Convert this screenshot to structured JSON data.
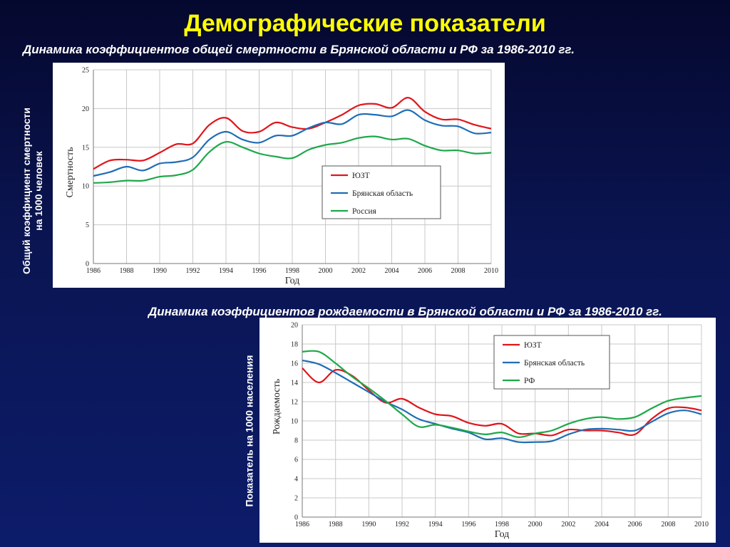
{
  "slide": {
    "title": "Демографические показатели",
    "subtitle_mortality": "Динамика коэффициентов общей смертности в Брянской области и РФ за 1986-2010 гг.",
    "subtitle_births": "Динамика коэффициентов рождаемости в Брянской области и РФ за 1986-2010 гг.",
    "side_label_mortality_line1": "Общий коэффициент смертности",
    "side_label_mortality_line2": "на 1000  человек",
    "side_label_births": "Показатель на 1000 населения",
    "text_color": "#ffffff",
    "title_color": "#ffff00"
  },
  "chart_data": [
    {
      "type": "line",
      "xlabel": "Год",
      "ylabel": "Смертность",
      "xlim": [
        1986,
        2010
      ],
      "ylim": [
        0,
        25
      ],
      "x_ticks": [
        1986,
        1988,
        1990,
        1992,
        1994,
        1996,
        1998,
        2000,
        2002,
        2004,
        2006,
        2008,
        2010
      ],
      "y_ticks": [
        0,
        5,
        10,
        15,
        20,
        25
      ],
      "grid": true,
      "legend_position": "right-middle",
      "x": [
        1986,
        1987,
        1988,
        1989,
        1990,
        1991,
        1992,
        1993,
        1994,
        1995,
        1996,
        1997,
        1998,
        1999,
        2000,
        2001,
        2002,
        2003,
        2004,
        2005,
        2006,
        2007,
        2008,
        2009,
        2010
      ],
      "series": [
        {
          "name": "ЮЗТ",
          "color": "#e0151b",
          "values": [
            12.2,
            13.3,
            13.4,
            13.3,
            14.3,
            15.4,
            15.5,
            17.9,
            18.8,
            17.1,
            17.0,
            18.2,
            17.6,
            17.4,
            18.2,
            19.2,
            20.4,
            20.6,
            20.1,
            21.4,
            19.6,
            18.6,
            18.6,
            17.9,
            17.4
          ]
        },
        {
          "name": "Брянская область",
          "color": "#1f6db5",
          "values": [
            11.3,
            11.8,
            12.5,
            12.0,
            12.9,
            13.1,
            13.7,
            16.0,
            17.0,
            16.0,
            15.6,
            16.5,
            16.5,
            17.5,
            18.2,
            18.0,
            19.2,
            19.2,
            19.0,
            19.8,
            18.5,
            17.8,
            17.7,
            16.8,
            16.9
          ]
        },
        {
          "name": "Россия",
          "color": "#1ea84a",
          "values": [
            10.4,
            10.5,
            10.7,
            10.7,
            11.2,
            11.4,
            12.1,
            14.4,
            15.7,
            15.0,
            14.2,
            13.8,
            13.6,
            14.7,
            15.3,
            15.6,
            16.2,
            16.4,
            16.0,
            16.1,
            15.2,
            14.6,
            14.6,
            14.2,
            14.3
          ]
        }
      ]
    },
    {
      "type": "line",
      "xlabel": "Год",
      "ylabel": "Рождаемость",
      "xlim": [
        1986,
        2010
      ],
      "ylim": [
        0,
        20
      ],
      "x_ticks": [
        1986,
        1988,
        1990,
        1992,
        1994,
        1996,
        1998,
        2000,
        2002,
        2004,
        2006,
        2008,
        2010
      ],
      "y_ticks": [
        0,
        2,
        4,
        6,
        8,
        10,
        12,
        14,
        16,
        18,
        20
      ],
      "grid": true,
      "legend_position": "top-right",
      "x": [
        1986,
        1987,
        1988,
        1989,
        1990,
        1991,
        1992,
        1993,
        1994,
        1995,
        1996,
        1997,
        1998,
        1999,
        2000,
        2001,
        2002,
        2003,
        2004,
        2005,
        2006,
        2007,
        2008,
        2009,
        2010
      ],
      "series": [
        {
          "name": "ЮЗТ",
          "color": "#e0151b",
          "values": [
            15.5,
            14.0,
            15.3,
            14.7,
            13.2,
            11.9,
            12.3,
            11.4,
            10.7,
            10.5,
            9.8,
            9.5,
            9.7,
            8.7,
            8.7,
            8.5,
            9.1,
            9.0,
            9.0,
            8.8,
            8.6,
            10.2,
            11.3,
            11.4,
            11.1
          ]
        },
        {
          "name": "Брянская область",
          "color": "#1f6db5",
          "values": [
            16.3,
            15.9,
            15.0,
            14.0,
            13.0,
            12.0,
            11.2,
            10.2,
            9.7,
            9.2,
            8.8,
            8.1,
            8.2,
            7.8,
            7.8,
            7.9,
            8.6,
            9.1,
            9.2,
            9.1,
            9.0,
            9.9,
            10.8,
            11.1,
            10.7
          ]
        },
        {
          "name": "РФ",
          "color": "#1ea84a",
          "values": [
            17.2,
            17.2,
            16.0,
            14.6,
            13.4,
            12.1,
            10.7,
            9.4,
            9.6,
            9.3,
            8.9,
            8.6,
            8.8,
            8.3,
            8.7,
            9.0,
            9.7,
            10.2,
            10.4,
            10.2,
            10.4,
            11.3,
            12.1,
            12.4,
            12.6
          ]
        }
      ]
    }
  ]
}
